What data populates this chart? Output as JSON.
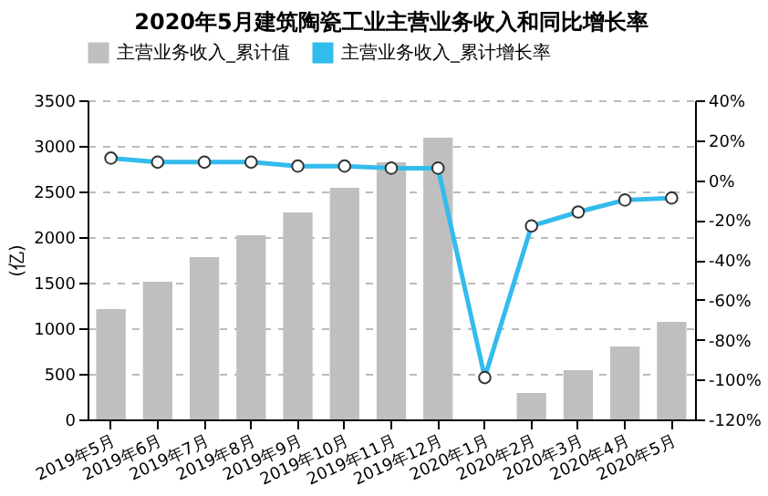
{
  "chart_data": {
    "type": "bar",
    "title": "2020年5月建筑陶瓷工业主营业务收入和同比增长率",
    "ylabel": "(亿)",
    "categories": [
      "2019年5月",
      "2019年6月",
      "2019年7月",
      "2019年8月",
      "2019年9月",
      "2019年10月",
      "2019年11月",
      "2019年12月",
      "2020年1月",
      "2020年2月",
      "2020年3月",
      "2020年4月",
      "2020年5月"
    ],
    "series": [
      {
        "name": "主营业务收入_累计值",
        "color": "#bfbfbf",
        "values": [
          1210,
          1510,
          1780,
          2020,
          2270,
          2540,
          2820,
          3090,
          null,
          290,
          540,
          800,
          1070
        ]
      },
      {
        "name": "主营业务收入_累计增长率",
        "color": "#33bbee",
        "type": "line",
        "axis": "y2",
        "values": [
          11,
          9,
          9,
          9,
          7,
          7,
          6,
          6,
          -99,
          -23,
          -16,
          -10,
          -9
        ]
      }
    ],
    "ylim": [
      0,
      3500
    ],
    "yticks": [
      0,
      500,
      1000,
      1500,
      2000,
      2500,
      3000,
      3500
    ],
    "y2lim": [
      -120,
      40
    ],
    "y2ticks": [
      {
        "value": 40,
        "label": "40%"
      },
      {
        "value": 20,
        "label": "20%"
      },
      {
        "value": 0,
        "label": "0%"
      },
      {
        "value": -20,
        "label": "-20%"
      },
      {
        "value": -40,
        "label": "-40%"
      },
      {
        "value": -60,
        "label": "-60%"
      },
      {
        "value": -80,
        "label": "-80%"
      },
      {
        "value": -100,
        "label": "-100%"
      },
      {
        "value": -120,
        "label": "-120%"
      }
    ],
    "grid": "y",
    "legend": "top",
    "marker": "circle",
    "line_style": "solid"
  }
}
